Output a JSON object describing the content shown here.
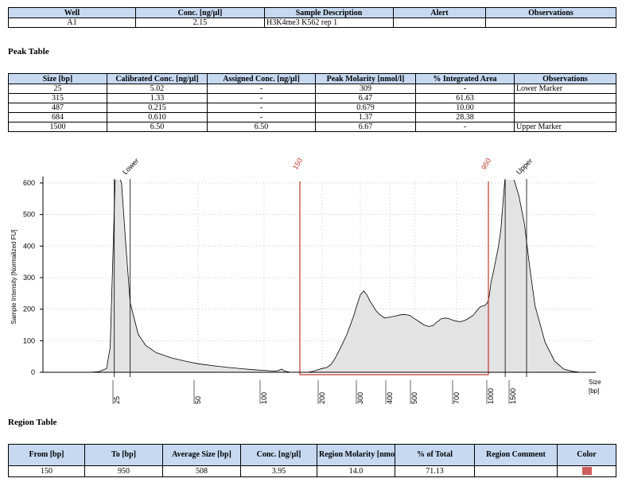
{
  "well_table": {
    "headers": [
      "Well",
      "Conc. [ng/µl]",
      "Sample Description",
      "Alert",
      "Observations"
    ],
    "rows": [
      [
        "A1",
        "2.15",
        "H3K4me3 K562 rep 1",
        "",
        ""
      ]
    ]
  },
  "peak_table": {
    "title": "Peak Table",
    "headers": [
      "Size [bp]",
      "Calibrated Conc. [ng/µl]",
      "Assigned Conc. [ng/µl]",
      "Peak Molarity [nmol/l]",
      "% Integrated Area",
      "Observations"
    ],
    "rows": [
      [
        "25",
        "5.02",
        "-",
        "309",
        "-",
        "Lower Marker"
      ],
      [
        "315",
        "1.33",
        "-",
        "6.47",
        "61.63",
        ""
      ],
      [
        "487",
        "0.215",
        "-",
        "0.679",
        "10.00",
        ""
      ],
      [
        "684",
        "0.610",
        "-",
        "1.37",
        "28.38",
        ""
      ],
      [
        "1500",
        "6.50",
        "6.50",
        "6.67",
        "-",
        "Upper Marker"
      ]
    ]
  },
  "region_table": {
    "title": "Region Table",
    "headers": [
      "From [bp]",
      "To [bp]",
      "Average Size [bp]",
      "Conc. [ng/µl]",
      "Region Molarity [nmol/l]",
      "% of Total",
      "Region Comment",
      "Color"
    ],
    "rows": [
      [
        "150",
        "950",
        "508",
        "3.95",
        "14.0",
        "71.13",
        "",
        ""
      ]
    ],
    "region_color": "#cd5c5c"
  },
  "chart_data": {
    "type": "line",
    "ylabel": "Sample Intensity [Normalized FU]",
    "xlabel": "Size\n[bp]",
    "xlabel_lines": [
      "Size",
      "[bp]"
    ],
    "ylim": [
      0,
      600
    ],
    "yticks": [
      0,
      100,
      200,
      300,
      400,
      500,
      600
    ],
    "x_scale": "log",
    "xticks": [
      25,
      50,
      100,
      200,
      300,
      400,
      500,
      700,
      1000,
      1500
    ],
    "grid": true,
    "series": [
      {
        "x": [
          10,
          18,
          20,
          22,
          23,
          24,
          24.5,
          25,
          25.5,
          26,
          27,
          28,
          30,
          32,
          35,
          40,
          45,
          50,
          60,
          70,
          80,
          90,
          100,
          110,
          115,
          118,
          122,
          126,
          135,
          145,
          155,
          165,
          175,
          190,
          200,
          210,
          220,
          230,
          240,
          250,
          260,
          270,
          280,
          290,
          300,
          310,
          320,
          330,
          340,
          350,
          360,
          380,
          400,
          420,
          440,
          460,
          480,
          500,
          520,
          540,
          560,
          580,
          600,
          620,
          640,
          660,
          680,
          700,
          720,
          740,
          760,
          780,
          800,
          820,
          840,
          860,
          880,
          900,
          920,
          940,
          960,
          980,
          1000,
          1050,
          1100,
          1150,
          1200,
          1250,
          1300,
          1350,
          1400,
          1450,
          1500,
          1550,
          1600,
          1650,
          1700,
          1800,
          1900,
          2000,
          2100,
          2200,
          2400
        ],
        "y": [
          0,
          0,
          2,
          12,
          80,
          450,
          620,
          620,
          620,
          600,
          400,
          220,
          120,
          85,
          62,
          45,
          35,
          27,
          20,
          15,
          11,
          8,
          6,
          4,
          4,
          6,
          10,
          4,
          0,
          0,
          0,
          0,
          2,
          8,
          12,
          15,
          25,
          45,
          70,
          95,
          120,
          150,
          180,
          215,
          245,
          258,
          245,
          225,
          210,
          195,
          185,
          172,
          175,
          178,
          182,
          183,
          180,
          170,
          160,
          150,
          145,
          148,
          160,
          170,
          172,
          170,
          165,
          162,
          160,
          162,
          165,
          170,
          175,
          180,
          190,
          200,
          208,
          210,
          212,
          220,
          235,
          255,
          280,
          320,
          360,
          400,
          450,
          540,
          620,
          620,
          620,
          620,
          620,
          560,
          470,
          330,
          210,
          95,
          35,
          10,
          3,
          0,
          0
        ]
      }
    ],
    "markers": [
      {
        "label": "Lower",
        "x_from": 24.2,
        "x_to": 28
      },
      {
        "label": "Upper",
        "x_from": 1300,
        "x_to": 1620
      }
    ],
    "region": {
      "from": 150,
      "to": 950,
      "label_from": "150",
      "label_to": "950",
      "color": "#c0392b"
    },
    "marker_labels": [
      "Lower",
      "Upper"
    ]
  }
}
